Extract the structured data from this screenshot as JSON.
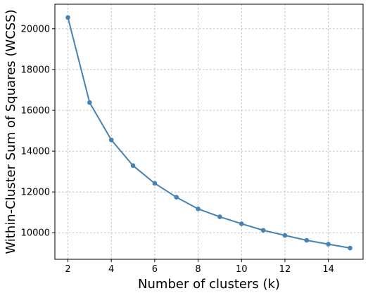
{
  "chart_data": {
    "type": "line",
    "title": "",
    "xlabel": "Number of clusters (k)",
    "ylabel": "Within-Cluster Sum of Squares (WCSS)",
    "xlim": [
      1.4,
      15.6
    ],
    "ylim": [
      8700,
      21200
    ],
    "xticks": [
      2,
      4,
      6,
      8,
      10,
      12,
      14
    ],
    "yticks": [
      10000,
      12000,
      14000,
      16000,
      18000,
      20000
    ],
    "grid": true,
    "series": [
      {
        "color": "#4682b4",
        "marker": "circle",
        "x": [
          2,
          3,
          4,
          5,
          6,
          7,
          8,
          9,
          10,
          11,
          12,
          13,
          14,
          15
        ],
        "y": [
          20550,
          16380,
          14550,
          13290,
          12420,
          11740,
          11170,
          10780,
          10440,
          10120,
          9870,
          9630,
          9440,
          9250
        ]
      }
    ]
  }
}
